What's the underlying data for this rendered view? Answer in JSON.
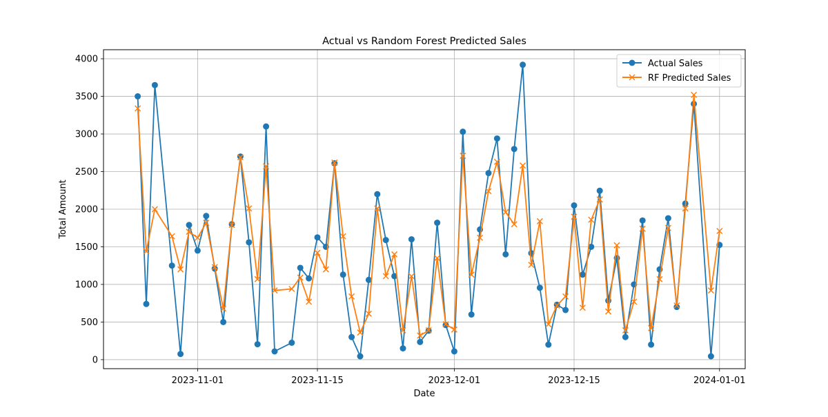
{
  "chart_data": {
    "type": "line",
    "title": "Actual vs Random Forest Predicted Sales",
    "xlabel": "Date",
    "ylabel": "Total Amount",
    "x_type": "date",
    "xlim": [
      "2023-10-21",
      "2024-01-04"
    ],
    "ylim": [
      -120,
      4120
    ],
    "xticks": [
      "2023-11-01",
      "2023-11-15",
      "2023-12-01",
      "2023-12-15",
      "2024-01-01"
    ],
    "xtick_labels": [
      "2023-11-01",
      "2023-11-15",
      "2023-12-01",
      "2023-12-15",
      "2024-01-01"
    ],
    "yticks": [
      0,
      500,
      1000,
      1500,
      2000,
      2500,
      3000,
      3500,
      4000
    ],
    "ytick_labels": [
      "0",
      "500",
      "1000",
      "1500",
      "2000",
      "2500",
      "3000",
      "3500",
      "4000"
    ],
    "grid": true,
    "legend_position": "upper right",
    "colors": {
      "actual": "#1f77b4",
      "predicted": "#ff7f0e",
      "grid": "#b0b0b0"
    },
    "series": [
      {
        "name": "Actual Sales",
        "marker": "circle",
        "points": [
          [
            "2023-10-25",
            3500
          ],
          [
            "2023-10-26",
            740
          ],
          [
            "2023-10-27",
            3650
          ],
          [
            "2023-10-29",
            1250
          ],
          [
            "2023-10-30",
            75
          ],
          [
            "2023-10-31",
            1790
          ],
          [
            "2023-11-01",
            1450
          ],
          [
            "2023-11-02",
            1910
          ],
          [
            "2023-11-03",
            1210
          ],
          [
            "2023-11-04",
            500
          ],
          [
            "2023-11-05",
            1800
          ],
          [
            "2023-11-06",
            2700
          ],
          [
            "2023-11-07",
            1560
          ],
          [
            "2023-11-08",
            205
          ],
          [
            "2023-11-09",
            3100
          ],
          [
            "2023-11-10",
            110
          ],
          [
            "2023-11-12",
            225
          ],
          [
            "2023-11-13",
            1220
          ],
          [
            "2023-11-14",
            1080
          ],
          [
            "2023-11-15",
            1625
          ],
          [
            "2023-11-16",
            1500
          ],
          [
            "2023-11-17",
            2610
          ],
          [
            "2023-11-18",
            1130
          ],
          [
            "2023-11-19",
            300
          ],
          [
            "2023-11-20",
            45
          ],
          [
            "2023-11-21",
            1060
          ],
          [
            "2023-11-22",
            2200
          ],
          [
            "2023-11-23",
            1590
          ],
          [
            "2023-11-24",
            1110
          ],
          [
            "2023-11-25",
            150
          ],
          [
            "2023-11-26",
            1600
          ],
          [
            "2023-11-27",
            235
          ],
          [
            "2023-11-28",
            385
          ],
          [
            "2023-11-29",
            1820
          ],
          [
            "2023-11-30",
            460
          ],
          [
            "2023-12-01",
            110
          ],
          [
            "2023-12-02",
            3030
          ],
          [
            "2023-12-03",
            600
          ],
          [
            "2023-12-04",
            1730
          ],
          [
            "2023-12-05",
            2480
          ],
          [
            "2023-12-06",
            2940
          ],
          [
            "2023-12-07",
            1400
          ],
          [
            "2023-12-08",
            2800
          ],
          [
            "2023-12-09",
            3920
          ],
          [
            "2023-12-10",
            1415
          ],
          [
            "2023-12-11",
            955
          ],
          [
            "2023-12-12",
            200
          ],
          [
            "2023-12-13",
            730
          ],
          [
            "2023-12-14",
            660
          ],
          [
            "2023-12-15",
            2050
          ],
          [
            "2023-12-16",
            1130
          ],
          [
            "2023-12-17",
            1500
          ],
          [
            "2023-12-18",
            2245
          ],
          [
            "2023-12-19",
            785
          ],
          [
            "2023-12-20",
            1350
          ],
          [
            "2023-12-21",
            300
          ],
          [
            "2023-12-22",
            1000
          ],
          [
            "2023-12-23",
            1850
          ],
          [
            "2023-12-24",
            200
          ],
          [
            "2023-12-25",
            1200
          ],
          [
            "2023-12-26",
            1880
          ],
          [
            "2023-12-27",
            700
          ],
          [
            "2023-12-28",
            2075
          ],
          [
            "2023-12-29",
            3400
          ],
          [
            "2023-12-31",
            45
          ],
          [
            "2024-01-01",
            1525
          ]
        ]
      },
      {
        "name": "RF Predicted Sales",
        "marker": "x",
        "points": [
          [
            "2023-10-25",
            3340
          ],
          [
            "2023-10-26",
            1440
          ],
          [
            "2023-10-27",
            2000
          ],
          [
            "2023-10-29",
            1640
          ],
          [
            "2023-10-30",
            1200
          ],
          [
            "2023-10-31",
            1700
          ],
          [
            "2023-11-01",
            1620
          ],
          [
            "2023-11-02",
            1820
          ],
          [
            "2023-11-03",
            1230
          ],
          [
            "2023-11-04",
            680
          ],
          [
            "2023-11-05",
            1790
          ],
          [
            "2023-11-06",
            2690
          ],
          [
            "2023-11-07",
            2010
          ],
          [
            "2023-11-08",
            1070
          ],
          [
            "2023-11-09",
            2570
          ],
          [
            "2023-11-10",
            920
          ],
          [
            "2023-11-12",
            940
          ],
          [
            "2023-11-13",
            1090
          ],
          [
            "2023-11-14",
            770
          ],
          [
            "2023-11-15",
            1420
          ],
          [
            "2023-11-16",
            1200
          ],
          [
            "2023-11-17",
            2620
          ],
          [
            "2023-11-18",
            1640
          ],
          [
            "2023-11-19",
            840
          ],
          [
            "2023-11-20",
            360
          ],
          [
            "2023-11-21",
            610
          ],
          [
            "2023-11-22",
            2010
          ],
          [
            "2023-11-23",
            1110
          ],
          [
            "2023-11-24",
            1400
          ],
          [
            "2023-11-25",
            390
          ],
          [
            "2023-11-26",
            1110
          ],
          [
            "2023-11-27",
            320
          ],
          [
            "2023-11-28",
            390
          ],
          [
            "2023-11-29",
            1350
          ],
          [
            "2023-11-30",
            470
          ],
          [
            "2023-12-01",
            400
          ],
          [
            "2023-12-02",
            2710
          ],
          [
            "2023-12-03",
            1130
          ],
          [
            "2023-12-04",
            1620
          ],
          [
            "2023-12-05",
            2240
          ],
          [
            "2023-12-06",
            2630
          ],
          [
            "2023-12-07",
            1960
          ],
          [
            "2023-12-08",
            1800
          ],
          [
            "2023-12-09",
            2580
          ],
          [
            "2023-12-10",
            1260
          ],
          [
            "2023-12-11",
            1840
          ],
          [
            "2023-12-12",
            470
          ],
          [
            "2023-12-13",
            720
          ],
          [
            "2023-12-14",
            840
          ],
          [
            "2023-12-15",
            1900
          ],
          [
            "2023-12-16",
            690
          ],
          [
            "2023-12-17",
            1860
          ],
          [
            "2023-12-18",
            2130
          ],
          [
            "2023-12-19",
            640
          ],
          [
            "2023-12-20",
            1520
          ],
          [
            "2023-12-21",
            390
          ],
          [
            "2023-12-22",
            770
          ],
          [
            "2023-12-23",
            1740
          ],
          [
            "2023-12-24",
            420
          ],
          [
            "2023-12-25",
            1070
          ],
          [
            "2023-12-26",
            1750
          ],
          [
            "2023-12-27",
            720
          ],
          [
            "2023-12-28",
            2010
          ],
          [
            "2023-12-29",
            3520
          ],
          [
            "2023-12-31",
            920
          ],
          [
            "2024-01-01",
            1710
          ]
        ]
      }
    ]
  }
}
